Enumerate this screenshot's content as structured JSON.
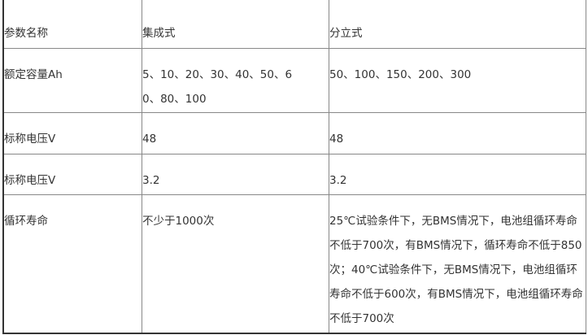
{
  "table": {
    "headers": [
      "参数名称",
      "集成式",
      "分立式"
    ],
    "rows": [
      [
        "额定容量Ah",
        "5、10、20、30、40、50、60、80、100",
        "50、100、150、200、300"
      ],
      [
        "标称电压V",
        "48",
        "48"
      ],
      [
        "标称电压V",
        "3.2",
        "3.2"
      ],
      [
        "循环寿命",
        "不少于1000次",
        "25℃试验条件下，无BMS情况下，电池组循环寿命不低于700次，有BMS情况下，循环寿命不低于850次；40℃试验条件下，无BMS情况下，电池组循环寿命不低于600次，有BMS情况下，电池组循环寿命不低于700次"
      ]
    ]
  }
}
